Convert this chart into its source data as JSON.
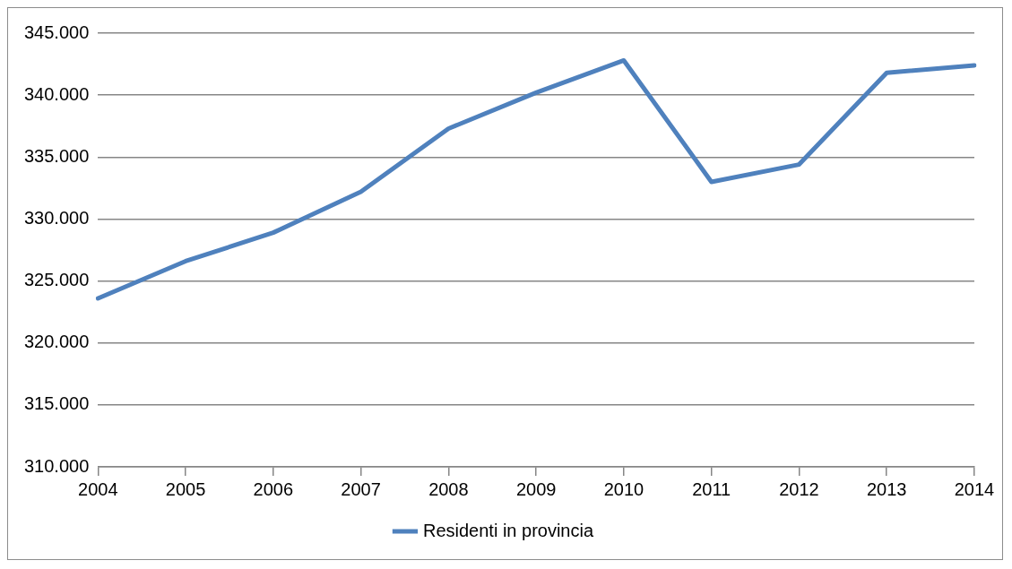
{
  "chart_data": {
    "type": "line",
    "categories": [
      "2004",
      "2005",
      "2006",
      "2007",
      "2008",
      "2009",
      "2010",
      "2011",
      "2012",
      "2013",
      "2014"
    ],
    "series": [
      {
        "name": "Residenti in provincia",
        "color": "#4f81bd",
        "values": [
          323600,
          326600,
          328900,
          332200,
          337300,
          340200,
          342800,
          333000,
          334400,
          341800,
          342400
        ]
      }
    ],
    "ylim": [
      310000,
      345000
    ],
    "yticks": [
      {
        "value": 310000,
        "label": "310.000"
      },
      {
        "value": 315000,
        "label": "315.000"
      },
      {
        "value": 320000,
        "label": "320.000"
      },
      {
        "value": 325000,
        "label": "325.000"
      },
      {
        "value": 330000,
        "label": "330.000"
      },
      {
        "value": 335000,
        "label": "335.000"
      },
      {
        "value": 340000,
        "label": "340.000"
      },
      {
        "value": 345000,
        "label": "345.000"
      }
    ],
    "grid": "y",
    "legend": "bottom"
  }
}
